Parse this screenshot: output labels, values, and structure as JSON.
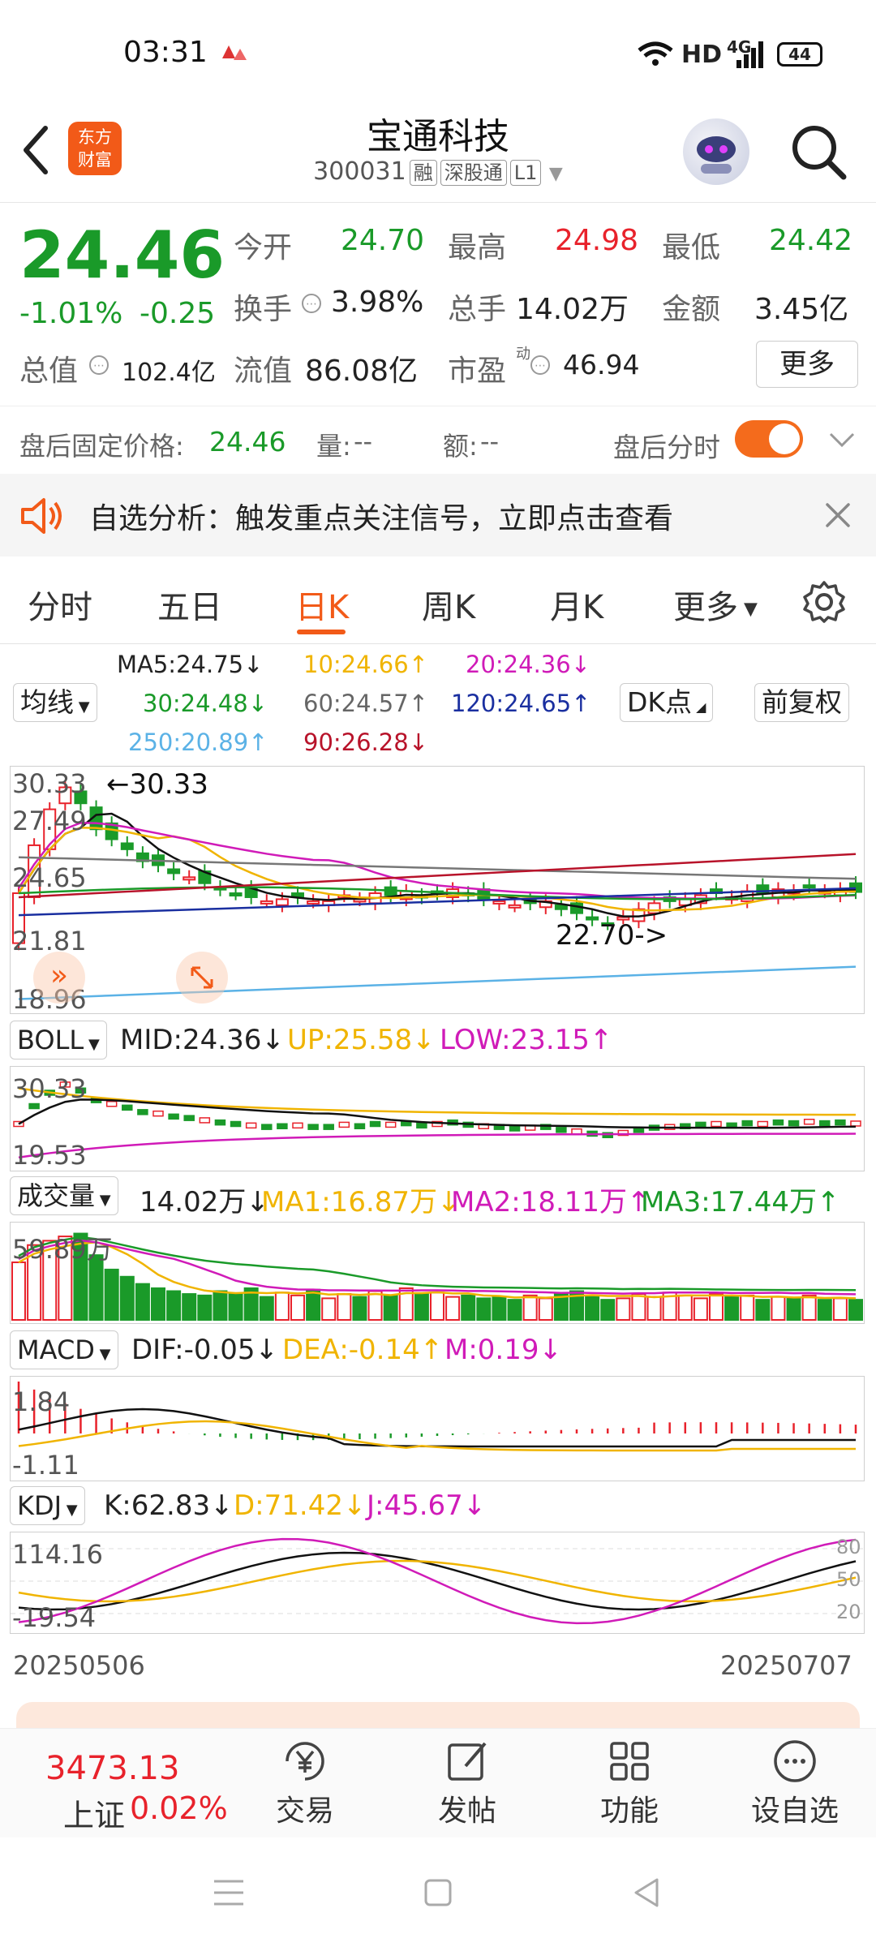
{
  "status": {
    "time": "03:31",
    "net": "HD",
    "net_gen": "4G",
    "battery": "44"
  },
  "header": {
    "stock_name": "宝通科技",
    "stock_code": "300031",
    "tags": [
      "融",
      "深股通",
      "L1"
    ],
    "logo_text_1": "东方",
    "logo_text_2": "财富"
  },
  "quote": {
    "price": "24.46",
    "change_pct": "-1.01%",
    "change": "-0.25",
    "open_label": "今开",
    "open": "24.70",
    "high_label": "最高",
    "high": "24.98",
    "low_label": "最低",
    "low": "24.42",
    "turnover_label": "换手",
    "turnover": "3.98%",
    "volume_label": "总手",
    "volume": "14.02万",
    "amount_label": "金额",
    "amount": "3.45亿",
    "mktcap_label": "总值",
    "mktcap": "102.4亿",
    "float_label": "流值",
    "float": "86.08亿",
    "pe_label": "市盈",
    "pe_sup": "动",
    "pe": "46.94",
    "more": "更多"
  },
  "after_hours": {
    "price_label": "盘后固定价格:",
    "price": "24.46",
    "vol_label": "量:",
    "vol": "--",
    "amt_label": "额:",
    "amt": "--",
    "toggle_label": "盘后分时"
  },
  "notice": {
    "text": "自选分析：触发重点关注信号，立即点击查看"
  },
  "tabs": [
    "分时",
    "五日",
    "日K",
    "周K",
    "月K",
    "更多"
  ],
  "chart_controls": {
    "ma_select": "均线",
    "dk": "DK点",
    "adjust": "前复权"
  },
  "ma": {
    "ma5": "MA5:24.75↓",
    "ma10": "10:24.66↑",
    "ma20": "20:24.36↓",
    "ma30": "30:24.48↓",
    "ma60": "60:24.57↑",
    "ma120": "120:24.65↑",
    "ma250": "250:20.89↑",
    "ma90": "90:26.28↓"
  },
  "price_axis": [
    "30.33",
    "27.49",
    "24.65",
    "21.81",
    "18.96"
  ],
  "annotations": {
    "high": "30.33",
    "low": "22.70->"
  },
  "boll": {
    "select": "BOLL",
    "mid": "MID:24.36↓",
    "up": "UP:25.58↓",
    "low": "LOW:23.15↑",
    "axis_top": "30.33",
    "axis_bottom": "19.53"
  },
  "volume": {
    "select": "成交量",
    "vol": "14.02万↓",
    "ma1": "MA1:16.87万↓",
    "ma2": "MA2:18.11万↑",
    "ma3": "MA3:17.44万↑",
    "axis_top": "59.89万"
  },
  "macd": {
    "select": "MACD",
    "dif": "DIF:-0.05↓",
    "dea": "DEA:-0.14↑",
    "m": "M:0.19↓",
    "axis_top": "1.84",
    "axis_bottom": "-1.11"
  },
  "kdj": {
    "select": "KDJ",
    "k": "K:62.83↓",
    "d": "D:71.42↓",
    "j": "J:45.67↓",
    "axis_top": "114.16",
    "axis_bottom": "-19.54",
    "r80": "80",
    "r50": "50",
    "r20": "20"
  },
  "dates": {
    "start": "20250506",
    "end": "20250707"
  },
  "chart_data": {
    "type": "candlestick",
    "x_range": [
      "20250506",
      "20250707"
    ],
    "ylim": [
      18.96,
      30.33
    ],
    "marked_high": 30.33,
    "marked_low": 22.7,
    "close_last": 24.46
  },
  "footer": {
    "index_value": "3473.13",
    "index_name": "上证",
    "index_change": "0.02%",
    "trade": "交易",
    "post": "发帖",
    "func": "功能",
    "watch": "设自选"
  },
  "colors": {
    "up": "#e8222b",
    "down": "#1a9a29",
    "accent": "#f25a18"
  }
}
